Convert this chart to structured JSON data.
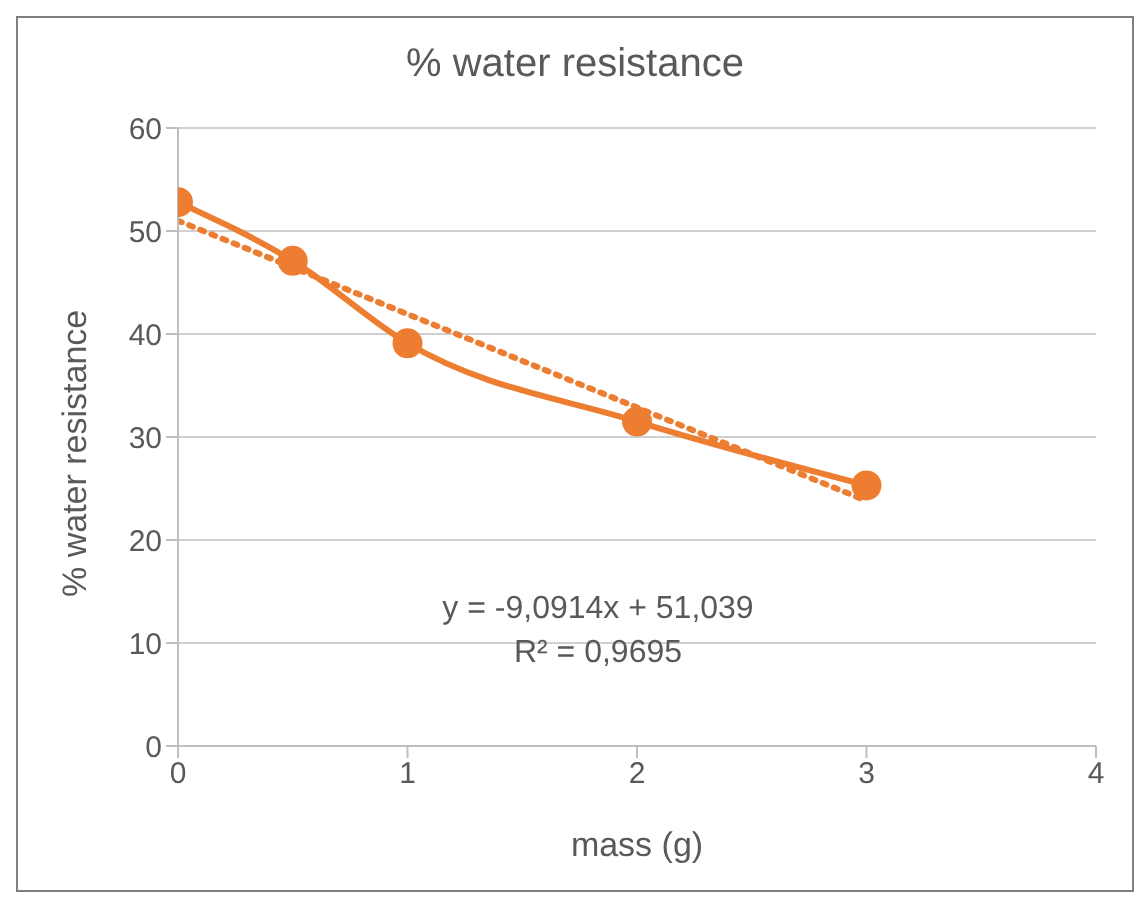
{
  "chart_data": {
    "type": "line",
    "title": "% water resistance",
    "xlabel": "mass (g)",
    "ylabel": "% water resistance",
    "x": [
      0,
      0.5,
      1,
      2,
      3
    ],
    "series": [
      {
        "color": "#ed7d31",
        "values": [
          52.8,
          47.1,
          39.1,
          31.5,
          25.3
        ],
        "marker": "circle",
        "line_style": "solid"
      },
      {
        "type": "line",
        "x": [
          0,
          3
        ],
        "color": "#ed7d31",
        "values": [
          51.0,
          23.8
        ],
        "marker": "none",
        "line_style": "dotted"
      }
    ],
    "xlim": [
      0,
      4
    ],
    "xticks": [
      0,
      1,
      2,
      3,
      4
    ],
    "ylim": [
      0,
      60
    ],
    "yticks": [
      0,
      10,
      20,
      30,
      40,
      50,
      60
    ],
    "grid": "y",
    "annotations": [
      "y = -9,0914x + 51,039",
      "R² = 0,9695"
    ]
  }
}
